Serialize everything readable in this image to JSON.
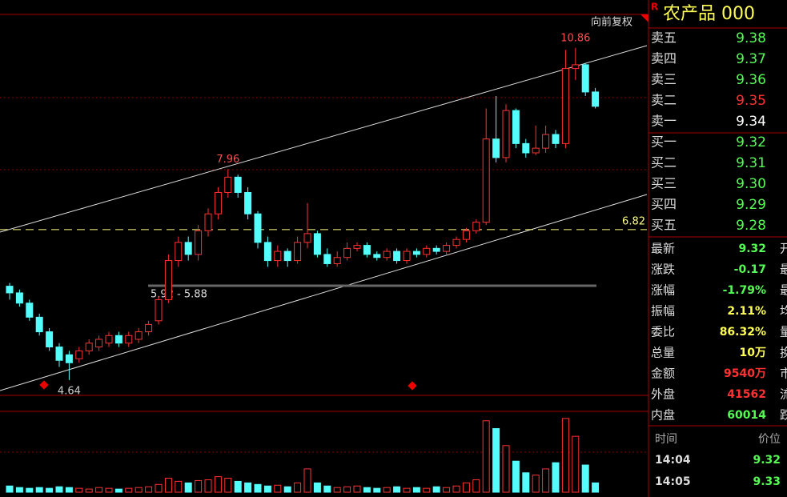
{
  "chart_data": {
    "type": "candlestick",
    "log": true,
    "ylim": [
      4.48,
      11.83
    ],
    "adjust_label": "向前复权",
    "open": [
      5.9,
      5.8,
      5.65,
      5.45,
      5.25,
      5.05,
      4.95,
      4.9,
      5.0,
      5.05,
      5.1,
      5.2,
      5.1,
      5.15,
      5.25,
      5.4,
      5.7,
      6.3,
      6.6,
      6.4,
      6.8,
      7.1,
      7.5,
      7.8,
      7.5,
      7.1,
      6.6,
      6.3,
      6.45,
      6.3,
      6.6,
      6.75,
      6.4,
      6.25,
      6.35,
      6.5,
      6.55,
      6.4,
      6.35,
      6.45,
      6.3,
      6.45,
      6.4,
      6.5,
      6.45,
      6.55,
      6.65,
      6.8,
      6.95,
      8.6,
      8.2,
      9.25,
      8.5,
      8.3,
      8.4,
      8.7,
      8.5,
      10.3,
      10.4,
      9.7
    ],
    "high": [
      5.95,
      5.85,
      5.7,
      5.5,
      5.3,
      5.1,
      5.0,
      5.05,
      5.15,
      5.2,
      5.25,
      5.25,
      5.25,
      5.3,
      5.4,
      5.75,
      6.4,
      6.7,
      6.7,
      6.9,
      7.2,
      7.6,
      7.96,
      7.85,
      7.6,
      7.15,
      6.7,
      6.55,
      6.5,
      6.7,
      7.3,
      6.8,
      6.5,
      6.45,
      6.6,
      6.6,
      6.6,
      6.45,
      6.5,
      6.5,
      6.5,
      6.5,
      6.55,
      6.55,
      6.6,
      6.7,
      6.85,
      7.0,
      9.3,
      9.6,
      9.4,
      9.3,
      8.6,
      8.9,
      8.9,
      8.8,
      10.8,
      10.86,
      10.45,
      9.8
    ],
    "low": [
      5.7,
      5.6,
      5.4,
      5.2,
      5.0,
      4.8,
      4.64,
      4.85,
      4.95,
      5.0,
      5.05,
      5.05,
      5.05,
      5.1,
      5.2,
      5.35,
      5.65,
      6.2,
      6.3,
      6.3,
      6.7,
      7.0,
      7.4,
      7.4,
      7.0,
      6.5,
      6.2,
      6.2,
      6.2,
      6.25,
      6.5,
      6.35,
      6.2,
      6.2,
      6.3,
      6.45,
      6.35,
      6.3,
      6.3,
      6.25,
      6.25,
      6.35,
      6.35,
      6.4,
      6.4,
      6.5,
      6.6,
      6.75,
      6.9,
      8.1,
      8.1,
      8.4,
      8.2,
      8.25,
      8.3,
      8.4,
      8.4,
      10.0,
      9.6,
      9.3
    ],
    "close": [
      5.8,
      5.65,
      5.45,
      5.25,
      5.05,
      4.88,
      4.85,
      5.0,
      5.1,
      5.15,
      5.2,
      5.1,
      5.2,
      5.25,
      5.35,
      5.7,
      6.3,
      6.6,
      6.4,
      6.8,
      7.1,
      7.5,
      7.8,
      7.5,
      7.1,
      6.6,
      6.3,
      6.45,
      6.3,
      6.6,
      6.75,
      6.4,
      6.25,
      6.35,
      6.5,
      6.55,
      6.4,
      6.35,
      6.45,
      6.3,
      6.45,
      6.4,
      6.5,
      6.45,
      6.55,
      6.65,
      6.8,
      6.95,
      8.6,
      8.2,
      9.25,
      8.5,
      8.3,
      8.4,
      8.7,
      8.5,
      10.3,
      10.4,
      9.7,
      9.35
    ],
    "volume": [
      8,
      6,
      5,
      6,
      5,
      7,
      6,
      5,
      4,
      6,
      5,
      4,
      5,
      6,
      7,
      10,
      18,
      14,
      12,
      15,
      16,
      20,
      18,
      14,
      12,
      10,
      8,
      9,
      7,
      12,
      30,
      12,
      8,
      6,
      7,
      8,
      6,
      5,
      6,
      7,
      5,
      6,
      5,
      7,
      6,
      8,
      12,
      16,
      92,
      82,
      60,
      40,
      25,
      22,
      30,
      38,
      95,
      72,
      35,
      12
    ],
    "volume_ylim": [
      0,
      100
    ],
    "up_color": "#ff3232",
    "down_color": "#54fcfc",
    "annotations": [
      {
        "text": "10.86",
        "value": 10.86,
        "index": 57
      },
      {
        "text": "7.96",
        "value": 7.96,
        "index": 22
      },
      {
        "text": "4.64",
        "value": 4.64,
        "index": 6
      }
    ],
    "level": {
      "label": "6.82",
      "value": 6.82
    },
    "range_label": "5.92 - 5.88"
  },
  "side": {
    "badge": "R",
    "title": "农产品 000",
    "order_book": [
      {
        "label": "卖五",
        "value": "9.38",
        "color": "#54fc54"
      },
      {
        "label": "卖四",
        "value": "9.37",
        "color": "#54fc54"
      },
      {
        "label": "卖三",
        "value": "9.36",
        "color": "#54fc54"
      },
      {
        "label": "卖二",
        "value": "9.35",
        "color": "#ff3232"
      },
      {
        "label": "卖一",
        "value": "9.34",
        "color": "#ffffff"
      },
      {
        "label": "买一",
        "value": "9.32",
        "color": "#54fc54"
      },
      {
        "label": "买二",
        "value": "9.31",
        "color": "#54fc54"
      },
      {
        "label": "买三",
        "value": "9.30",
        "color": "#54fc54"
      },
      {
        "label": "买四",
        "value": "9.29",
        "color": "#54fc54"
      },
      {
        "label": "买五",
        "value": "9.28",
        "color": "#54fc54"
      }
    ],
    "stats": [
      {
        "label": "最新",
        "value": "9.32",
        "color": "#54fc54",
        "cut": "开"
      },
      {
        "label": "涨跌",
        "value": "-0.17",
        "color": "#54fc54",
        "cut": "最"
      },
      {
        "label": "涨幅",
        "value": "-1.79%",
        "color": "#54fc54",
        "cut": "最"
      },
      {
        "label": "振幅",
        "value": "2.11%",
        "color": "#ffff54",
        "cut": "均"
      },
      {
        "label": "委比",
        "value": "86.32%",
        "color": "#ffff54",
        "cut": "量"
      },
      {
        "label": "总量",
        "value": "10万",
        "color": "#ffff54",
        "cut": "换"
      },
      {
        "label": "金额",
        "value": "9540万",
        "color": "#ff3232",
        "cut": "市"
      },
      {
        "label": "外盘",
        "value": "41562",
        "color": "#ff3232",
        "cut": "流"
      },
      {
        "label": "内盘",
        "value": "60014",
        "color": "#54fc54",
        "cut": "跌"
      }
    ],
    "ticks_header": [
      "时间",
      "价位"
    ],
    "ticks": [
      [
        "14:04",
        "9.32"
      ],
      [
        "14:05",
        "9.33"
      ]
    ]
  }
}
